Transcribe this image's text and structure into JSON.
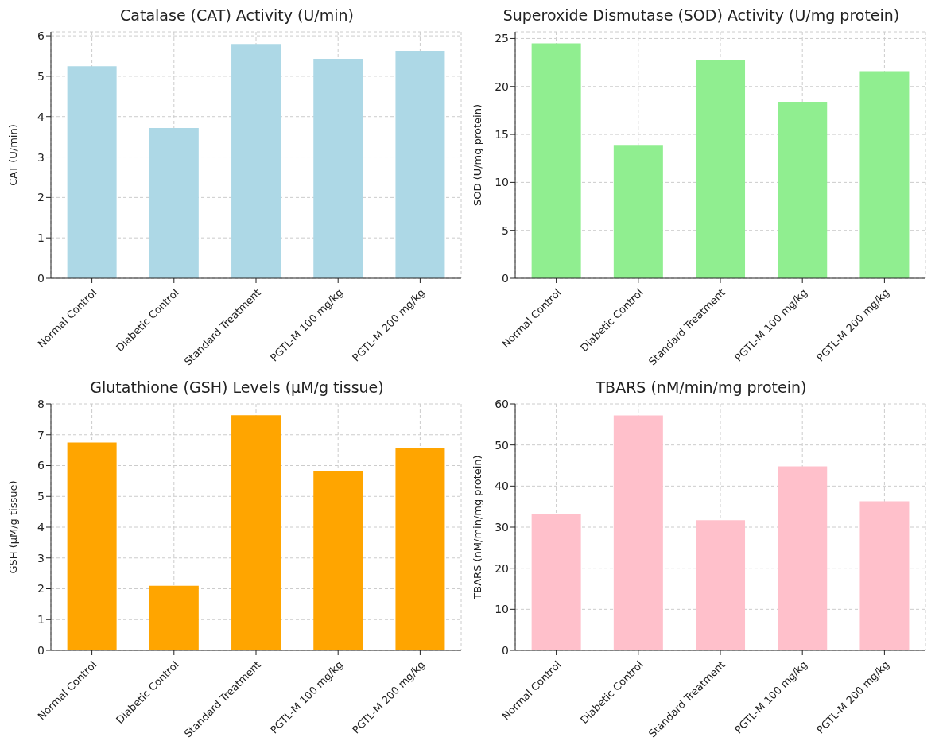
{
  "chart_data": [
    {
      "type": "bar",
      "title": "Catalase (CAT) Activity (U/min)",
      "ylabel": "CAT (U/min)",
      "categories": [
        "Normal Control",
        "Diabetic Control",
        "Standard Treatment",
        "PGTL-M 100 mg/kg",
        "PGTL-M 200 mg/kg"
      ],
      "series": [
        {
          "color": "#add8e6",
          "values": [
            5.25,
            3.72,
            5.8,
            5.43,
            5.63
          ]
        }
      ],
      "ylim": [
        0,
        6.1
      ],
      "yticks": [
        0,
        1,
        2,
        3,
        4,
        5,
        6
      ],
      "grid": true
    },
    {
      "type": "bar",
      "title": "Superoxide Dismutase (SOD) Activity (U/mg protein)",
      "ylabel": "SOD (U/mg protein)",
      "categories": [
        "Normal Control",
        "Diabetic Control",
        "Standard Treatment",
        "PGTL-M 100 mg/kg",
        "PGTL-M 200 mg/kg"
      ],
      "series": [
        {
          "color": "#90ee90",
          "values": [
            24.5,
            13.9,
            22.8,
            18.4,
            21.6
          ]
        }
      ],
      "ylim": [
        0,
        25.7
      ],
      "yticks": [
        0,
        5,
        10,
        15,
        20,
        25
      ],
      "grid": true
    },
    {
      "type": "bar",
      "title": "Glutathione (GSH) Levels (μM/g tissue)",
      "ylabel": "GSH (μM/g tissue)",
      "categories": [
        "Normal Control",
        "Diabetic Control",
        "Standard Treatment",
        "PGTL-M 100 mg/kg",
        "PGTL-M 200 mg/kg"
      ],
      "series": [
        {
          "color": "#ffa500",
          "values": [
            6.75,
            2.1,
            7.63,
            5.82,
            6.57
          ]
        }
      ],
      "ylim": [
        0,
        8
      ],
      "yticks": [
        0,
        1,
        2,
        3,
        4,
        5,
        6,
        7,
        8
      ],
      "grid": true
    },
    {
      "type": "bar",
      "title": "TBARS (nM/min/mg protein)",
      "ylabel": "TBARS (nM/min/mg protein)",
      "categories": [
        "Normal Control",
        "Diabetic Control",
        "Standard Treatment",
        "PGTL-M 100 mg/kg",
        "PGTL-M 200 mg/kg"
      ],
      "series": [
        {
          "color": "#ffc0cb",
          "values": [
            33.1,
            57.2,
            31.7,
            44.8,
            36.3
          ]
        }
      ],
      "ylim": [
        0,
        60
      ],
      "yticks": [
        0,
        10,
        20,
        30,
        40,
        50,
        60
      ],
      "grid": true
    }
  ]
}
